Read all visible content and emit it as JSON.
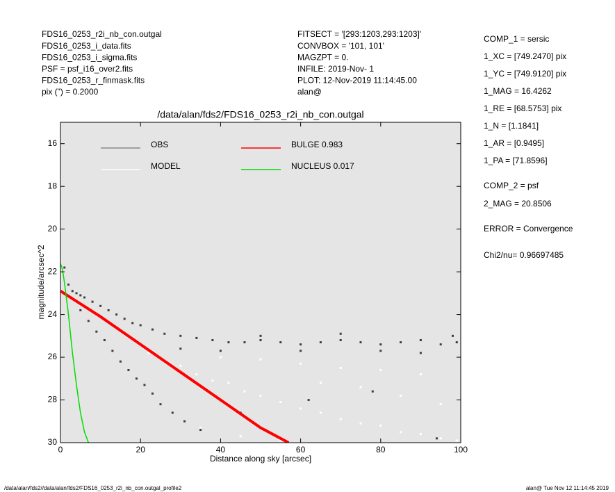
{
  "header": {
    "left": [
      "FDS16_0253_r2i_nb_con.outgal",
      "FDS16_0253_i_data.fits",
      "FDS16_0253_i_sigma.fits",
      "PSF     = psf_i16_over2.fits",
      "FDS16_0253_r_finmask.fits",
      "pix (\") =  0.2000"
    ],
    "center": [
      "FITSECT = '[293:1203,293:1203]'",
      "CONVBOX = '101, 101'",
      "MAGZPT  =                0.",
      "INFILE: 2019-Nov- 1",
      "PLOT: 12-Nov-2019 11:14:45.00",
      "alan@"
    ]
  },
  "params": [
    "COMP_1  = sersic",
    "1_XC    = [749.2470] pix",
    "1_YC    = [749.9120] pix",
    "1_MAG   = 16.4262",
    "1_RE    = [68.5753] pix",
    "1_N     = [1.1841]",
    "1_AR    = [0.9495]",
    "1_PA    = [71.8596]",
    "COMP_2  = psf",
    "2_MAG   = 20.8506",
    "ERROR   = Convergence",
    "Chi2/nu=      0.96697485"
  ],
  "footer": {
    "left": "/data/alan/fds2//data/alan/fds2/FDS16_0253_r2i_nb_con.outgal_profile2",
    "right": "alan@  Tue Nov 12 11:14:45 2019"
  },
  "chart_data": {
    "type": "scatter",
    "title": "/data/alan/fds2/FDS16_0253_r2i_nb_con.outgal",
    "xlabel": "Distance along sky [arcsec]",
    "ylabel": "magnitude/arcsec^2",
    "xlim": [
      0,
      100
    ],
    "ylim": [
      15,
      30
    ],
    "y_inverted": true,
    "xticks": [
      0,
      20,
      40,
      60,
      80,
      100
    ],
    "yticks": [
      16,
      18,
      20,
      22,
      24,
      26,
      28,
      30
    ],
    "background": "#e5e5e5",
    "series": [
      {
        "name": "OBS",
        "color": "#888888",
        "marker_color": "#3d3d3d",
        "style": "markers",
        "x": [
          1,
          2,
          3,
          4,
          5,
          6,
          8,
          10,
          12,
          14,
          16,
          18,
          20,
          23,
          26,
          30,
          34,
          38,
          42,
          46,
          50,
          55,
          60,
          65,
          70,
          75,
          80,
          85,
          90,
          95,
          99,
          30,
          40,
          50,
          60,
          70,
          80,
          90,
          98,
          5,
          7,
          9,
          11,
          13,
          15,
          17,
          19,
          21,
          23,
          25,
          28,
          31,
          35,
          45,
          62,
          78,
          94
        ],
        "values": [
          21.8,
          22.6,
          22.9,
          23.0,
          23.1,
          23.2,
          23.4,
          23.6,
          23.8,
          24.0,
          24.2,
          24.4,
          24.5,
          24.7,
          24.9,
          25.0,
          25.1,
          25.2,
          25.3,
          25.3,
          25.2,
          25.3,
          25.4,
          25.3,
          25.2,
          25.3,
          25.4,
          25.3,
          25.2,
          25.4,
          25.3,
          25.6,
          25.7,
          25.0,
          25.7,
          24.9,
          25.7,
          25.8,
          25.0,
          23.8,
          24.3,
          24.8,
          25.2,
          25.7,
          26.2,
          26.6,
          27.0,
          27.3,
          27.7,
          28.2,
          28.6,
          29.0,
          29.4,
          28.6,
          28.0,
          27.6,
          29.8
        ]
      },
      {
        "name": "MODEL",
        "color": "#ffffff",
        "marker_color": "#ffffff",
        "style": "markers",
        "x": [
          22,
          26,
          30,
          34,
          38,
          42,
          46,
          50,
          55,
          60,
          65,
          70,
          75,
          80,
          85,
          90,
          95,
          99,
          40,
          50,
          60,
          70,
          80,
          90,
          35,
          45,
          55,
          65,
          75,
          85,
          95
        ],
        "values": [
          25.8,
          26.2,
          26.4,
          26.8,
          27.1,
          27.2,
          27.6,
          27.8,
          28.1,
          28.4,
          28.6,
          28.9,
          29.1,
          29.2,
          29.5,
          29.6,
          29.8,
          29.9,
          26.0,
          26.1,
          26.3,
          26.5,
          26.6,
          26.8,
          29.3,
          29.7,
          29.9,
          27.2,
          27.4,
          27.8,
          28.2
        ]
      },
      {
        "name": "BULGE  0.983",
        "color": "#ff0000",
        "style": "line",
        "x": [
          0,
          10,
          20,
          30,
          40,
          50,
          57
        ],
        "values": [
          22.9,
          24.1,
          25.4,
          26.7,
          28.0,
          29.3,
          30.0
        ]
      },
      {
        "name": "NUCLEUS  0.017",
        "color": "#00dd00",
        "style": "line",
        "x": [
          0,
          0.5,
          1,
          2,
          3,
          4,
          5,
          6,
          7
        ],
        "values": [
          21.6,
          21.9,
          22.5,
          24.0,
          25.8,
          27.3,
          28.6,
          29.5,
          30.0
        ]
      }
    ]
  }
}
